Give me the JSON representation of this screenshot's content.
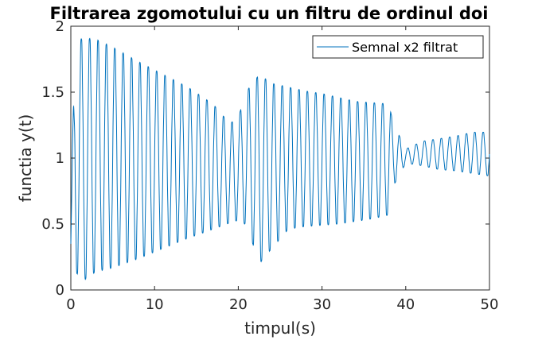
{
  "chart_data": {
    "type": "line",
    "title": "Filtrarea zgomotului cu un filtru de ordinul doi",
    "xlabel": "timpul(s)",
    "ylabel": "functia y(t)",
    "xlim": [
      0,
      50
    ],
    "ylim": [
      0,
      2
    ],
    "x_ticks": [
      0,
      10,
      20,
      30,
      40,
      50
    ],
    "y_ticks": [
      0,
      0.5,
      1,
      1.5,
      2
    ],
    "x_tick_labels": [
      "0",
      "10",
      "20",
      "30",
      "40",
      "50"
    ],
    "y_tick_labels": [
      "0",
      "0.5",
      "1",
      "1.5",
      "2"
    ],
    "grid": false,
    "legend_position": "top-right",
    "series": [
      {
        "name": "Semnal x2 filtrat",
        "color": "#0072BD",
        "oscillation_period_s": 1,
        "center": 1.0,
        "envelope_t": [
          0,
          0.5,
          1.5,
          3,
          5,
          8,
          11,
          14,
          17,
          19,
          20,
          21,
          22.5,
          24,
          26,
          28,
          30,
          32,
          34,
          36,
          38,
          38.5,
          40,
          42,
          44,
          46,
          48,
          50
        ],
        "envelope_max": [
          0.6,
          1.9,
          1.93,
          1.92,
          1.86,
          1.75,
          1.65,
          1.55,
          1.42,
          1.27,
          1.32,
          1.52,
          1.65,
          1.58,
          1.55,
          1.52,
          1.5,
          1.47,
          1.44,
          1.43,
          1.42,
          1.27,
          1.07,
          1.13,
          1.15,
          1.17,
          1.2,
          1.2
        ],
        "envelope_min": [
          0.1,
          0.12,
          0.05,
          0.12,
          0.15,
          0.22,
          0.3,
          0.38,
          0.45,
          0.5,
          0.52,
          0.48,
          0.18,
          0.3,
          0.45,
          0.47,
          0.48,
          0.49,
          0.51,
          0.53,
          0.56,
          0.78,
          0.96,
          0.94,
          0.91,
          0.9,
          0.88,
          0.86
        ]
      }
    ]
  }
}
